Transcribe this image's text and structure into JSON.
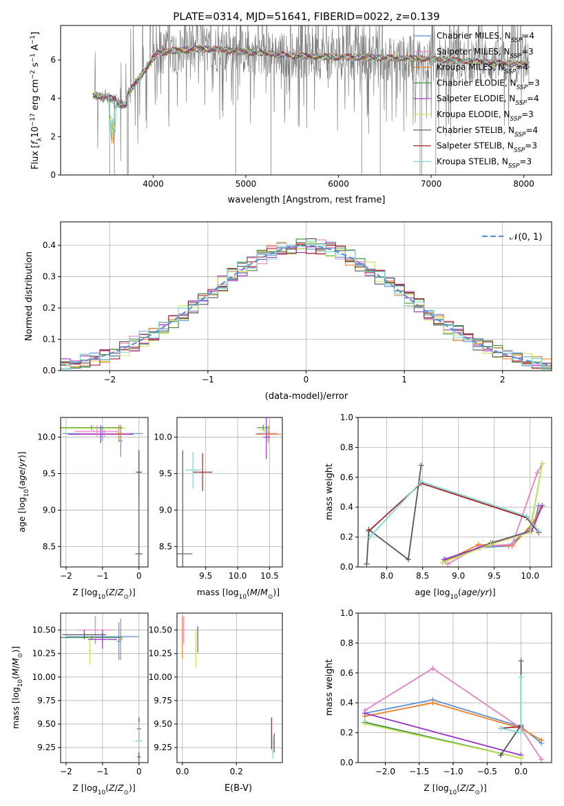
{
  "chart_data": [
    {
      "id": "spectrum",
      "type": "line",
      "title": "PLATE=0314, MJD=51641, FIBERID=0022, z=0.139",
      "xlabel": "wavelength [Angstrom, rest frame]",
      "ylabel": "Flux [f_λ10^-17 erg cm^-2 s^-1 A^-1]",
      "xlim": [
        3000,
        8300
      ],
      "ylim": [
        0,
        7.8
      ],
      "xticks": [
        4000,
        5000,
        6000,
        7000,
        8000
      ],
      "yticks": [
        0,
        2,
        4,
        6
      ],
      "grid": false,
      "legend_position": "right",
      "series": [
        {
          "name": "Chabrier MILES, N_SSP=4",
          "color": "#5b8fd8"
        },
        {
          "name": "Salpeter MILES, N_SSP=3",
          "color": "#e67fc4"
        },
        {
          "name": "Kroupa MILES, N_SSP=4",
          "color": "#f07f24"
        },
        {
          "name": "Chabrier ELODIE, N_SSP=3",
          "color": "#3d8f3d"
        },
        {
          "name": "Salpeter ELODIE, N_SSP=4",
          "color": "#9b30c8"
        },
        {
          "name": "Kroupa ELODIE, N_SSP=3",
          "color": "#c9e65a"
        },
        {
          "name": "Chabrier STELIB, N_SSP=4",
          "color": "#555555"
        },
        {
          "name": "Salpeter STELIB, N_SSP=3",
          "color": "#a32626"
        },
        {
          "name": "Kroupa STELIB, N_SSP=3",
          "color": "#7fd8d8"
        }
      ]
    },
    {
      "id": "residual_hist",
      "type": "line",
      "xlabel": "(data-model)/error",
      "ylabel": "Normed distribution",
      "xlim": [
        -2.5,
        2.5
      ],
      "ylim": [
        0,
        0.475
      ],
      "xticks": [
        -2,
        -1,
        0,
        1,
        2
      ],
      "yticks": [
        0.0,
        0.1,
        0.2,
        0.3,
        0.4
      ],
      "grid": true,
      "legend_position": "top-right",
      "legend": "𝒩(0, 1)",
      "gaussian_color": "#5b8fd8"
    },
    {
      "id": "age_vs_Z",
      "type": "scatter",
      "xlabel": "Z [log10(Z/Z⊙)]",
      "ylabel": "age  [log10(age/yr)]",
      "xlim": [
        -2.15,
        0.25
      ],
      "ylim": [
        8.22,
        10.27
      ],
      "xticks": [
        -2,
        -1,
        0
      ],
      "yticks": [
        8.5,
        9.0,
        9.5,
        10.0
      ],
      "grid": true
    },
    {
      "id": "age_vs_mass",
      "type": "scatter",
      "xlabel": "mass [log10(M/M⊙)]",
      "xlim": [
        9.05,
        10.7
      ],
      "ylim": [
        8.22,
        10.27
      ],
      "xticks": [
        9.5,
        10.0,
        10.5
      ],
      "yticks": [
        8.5,
        9.0,
        9.5,
        10.0
      ],
      "grid": true
    },
    {
      "id": "weight_vs_age",
      "type": "line",
      "xlabel": "age  [log10(age/yr)]",
      "ylabel": "mass weight",
      "xlim": [
        7.6,
        10.3
      ],
      "ylim": [
        0,
        1.0
      ],
      "xticks": [
        8.0,
        8.5,
        9.0,
        9.5,
        10.0
      ],
      "yticks": [
        0.0,
        0.2,
        0.4,
        0.6,
        0.8,
        1.0
      ],
      "grid": true,
      "series": [
        {
          "color": "#5b8fd8",
          "x": [
            8.82,
            9.3,
            9.7,
            10.05,
            10.12
          ],
          "y": [
            0.05,
            0.13,
            0.14,
            0.28,
            0.41
          ]
        },
        {
          "color": "#f07f24",
          "x": [
            8.82,
            9.28,
            9.75,
            10.05,
            10.15
          ],
          "y": [
            0.04,
            0.15,
            0.14,
            0.3,
            0.4
          ]
        },
        {
          "color": "#e67fc4",
          "x": [
            8.85,
            9.3,
            9.75,
            10.1,
            10.17
          ],
          "y": [
            0.02,
            0.14,
            0.15,
            0.63,
            0.69
          ]
        },
        {
          "color": "#3d8f3d",
          "x": [
            8.78,
            9.45,
            10.0,
            10.17
          ],
          "y": [
            0.03,
            0.16,
            0.24,
            0.69
          ]
        },
        {
          "color": "#9b30c8",
          "x": [
            8.8,
            9.48,
            10.02,
            10.17
          ],
          "y": [
            0.05,
            0.16,
            0.24,
            0.41
          ]
        },
        {
          "color": "#c9e65a",
          "x": [
            8.78,
            9.45,
            10.0,
            10.17
          ],
          "y": [
            0.03,
            0.15,
            0.23,
            0.69
          ]
        },
        {
          "color": "#555555",
          "x": [
            7.72,
            7.75,
            8.3,
            8.48
          ],
          "y": [
            0.02,
            0.25,
            0.05,
            0.68
          ]
        },
        {
          "color": "#a32626",
          "x": [
            7.75,
            8.48,
            9.95,
            10.12
          ],
          "y": [
            0.24,
            0.56,
            0.33,
            0.23
          ]
        },
        {
          "color": "#7fd8d8",
          "x": [
            7.76,
            8.48,
            9.95,
            10.12
          ],
          "y": [
            0.2,
            0.57,
            0.34,
            0.24
          ]
        }
      ]
    },
    {
      "id": "mass_vs_Z",
      "type": "scatter",
      "xlabel": "Z [log10(Z/Z⊙)]",
      "ylabel": "mass [log10(M/M⊙)]",
      "xlim": [
        -2.15,
        0.25
      ],
      "ylim": [
        9.09,
        10.68
      ],
      "xticks": [
        -2,
        -1,
        0
      ],
      "yticks": [
        9.25,
        9.5,
        9.75,
        10.0,
        10.25,
        10.5
      ],
      "grid": true
    },
    {
      "id": "mass_vs_EBV",
      "type": "scatter",
      "xlabel": "E(B-V)",
      "xlim": [
        -0.02,
        0.37
      ],
      "ylim": [
        9.09,
        10.68
      ],
      "xticks": [
        0.0,
        0.2
      ],
      "yticks": [
        9.25,
        9.5,
        9.75,
        10.0,
        10.25,
        10.5
      ],
      "grid": true
    },
    {
      "id": "weight_vs_Z",
      "type": "line",
      "xlabel": "Z [log10(Z/Z⊙)]",
      "ylabel": "mass weight",
      "xlim": [
        -2.4,
        0.45
      ],
      "ylim": [
        0,
        1.0
      ],
      "xticks": [
        -2.0,
        -1.5,
        -1.0,
        -0.5,
        0.0
      ],
      "yticks": [
        0.0,
        0.2,
        0.4,
        0.6,
        0.8,
        1.0
      ],
      "grid": true,
      "series": [
        {
          "color": "#5b8fd8",
          "x": [
            -2.3,
            -1.3,
            0.0,
            0.3
          ],
          "y": [
            0.33,
            0.42,
            0.24,
            0.13
          ]
        },
        {
          "color": "#f07f24",
          "x": [
            -2.3,
            -1.3,
            0.0,
            0.3
          ],
          "y": [
            0.31,
            0.4,
            0.23,
            0.15
          ]
        },
        {
          "color": "#e67fc4",
          "x": [
            -2.3,
            -1.3,
            0.0,
            0.3
          ],
          "y": [
            0.35,
            0.63,
            0.23,
            0.02
          ]
        },
        {
          "color": "#3d8f3d",
          "x": [
            -2.3,
            0.0
          ],
          "y": [
            0.27,
            0.03
          ]
        },
        {
          "color": "#9b30c8",
          "x": [
            -2.3,
            0.0
          ],
          "y": [
            0.33,
            0.05
          ]
        },
        {
          "color": "#c9e65a",
          "x": [
            -2.3,
            0.0
          ],
          "y": [
            0.26,
            0.03
          ]
        },
        {
          "color": "#555555",
          "x": [
            -0.3,
            0.0,
            0.0
          ],
          "y": [
            0.05,
            0.25,
            0.68
          ]
        },
        {
          "color": "#a32626",
          "x": [
            -0.3,
            0.0
          ],
          "y": [
            0.23,
            0.24
          ]
        },
        {
          "color": "#7fd8d8",
          "x": [
            -0.3,
            0.0,
            0.0
          ],
          "y": [
            0.23,
            0.2,
            0.57
          ]
        }
      ]
    }
  ]
}
